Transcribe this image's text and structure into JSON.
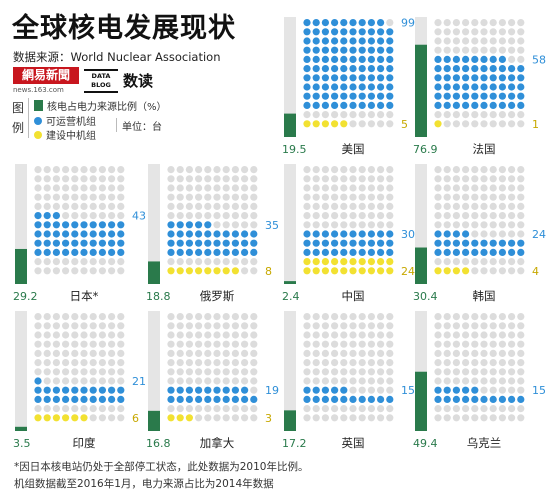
{
  "header": {
    "title": "全球核电发展现状",
    "source": "数据来源：World Nuclear Association",
    "brand_logo": "網易新聞",
    "brand_url": "news.163.com",
    "brand_badge_line1": "DATA",
    "brand_badge_line2": "BLOG",
    "brand_sub": "数读"
  },
  "legend": {
    "side_label_1": "图",
    "side_label_2": "例",
    "share": "核电占电力来源比例（%）",
    "operable": "可运营机组",
    "under_construction": "建设中机组",
    "unit": "单位：台"
  },
  "colors": {
    "share": "#2a7a4b",
    "operable": "#2f8fd8",
    "under_construction": "#f2e131",
    "empty_dot": "#dcdcdc",
    "bar_bg": "#e5e5e5",
    "share_text": "#2a7a4b",
    "operable_text": "#2f8fd8",
    "construction_text": "#c7a800"
  },
  "chart_data": {
    "type": "bar",
    "title": "全球核电发展现状",
    "dot_grid_capacity": 100,
    "share_max": 100,
    "categories": [
      "美国",
      "法国",
      "日本*",
      "俄罗斯",
      "中国",
      "韩国",
      "印度",
      "加拿大",
      "英国",
      "乌克兰"
    ],
    "series": [
      {
        "name": "核电占电力来源比例（%）",
        "values": [
          19.5,
          76.9,
          29.2,
          18.8,
          2.4,
          30.4,
          3.5,
          16.8,
          17.2,
          49.4
        ]
      },
      {
        "name": "可运营机组",
        "values": [
          99,
          58,
          43,
          35,
          30,
          24,
          21,
          19,
          15,
          15
        ]
      },
      {
        "name": "建设中机组",
        "values": [
          5,
          1,
          0,
          8,
          24,
          4,
          6,
          3,
          0,
          0
        ]
      }
    ],
    "share_labels": [
      "19.5",
      "76.9",
      "29.2",
      "18.8",
      "2.4",
      "30.4",
      "3.5",
      "16.8",
      "17.2",
      "49.4"
    ],
    "operable_labels": [
      "99",
      "58",
      "43",
      "35",
      "30",
      "24",
      "21",
      "19",
      "15",
      "15"
    ],
    "construction_labels": [
      "5",
      "1",
      "",
      "8",
      "24",
      "4",
      "6",
      "3",
      "",
      ""
    ]
  },
  "notes": [
    "*因日本核电站仍处于全部停工状态，此处数据为2010年比例。",
    "机组数据截至2016年1月，电力来源占比为2014年数据"
  ]
}
